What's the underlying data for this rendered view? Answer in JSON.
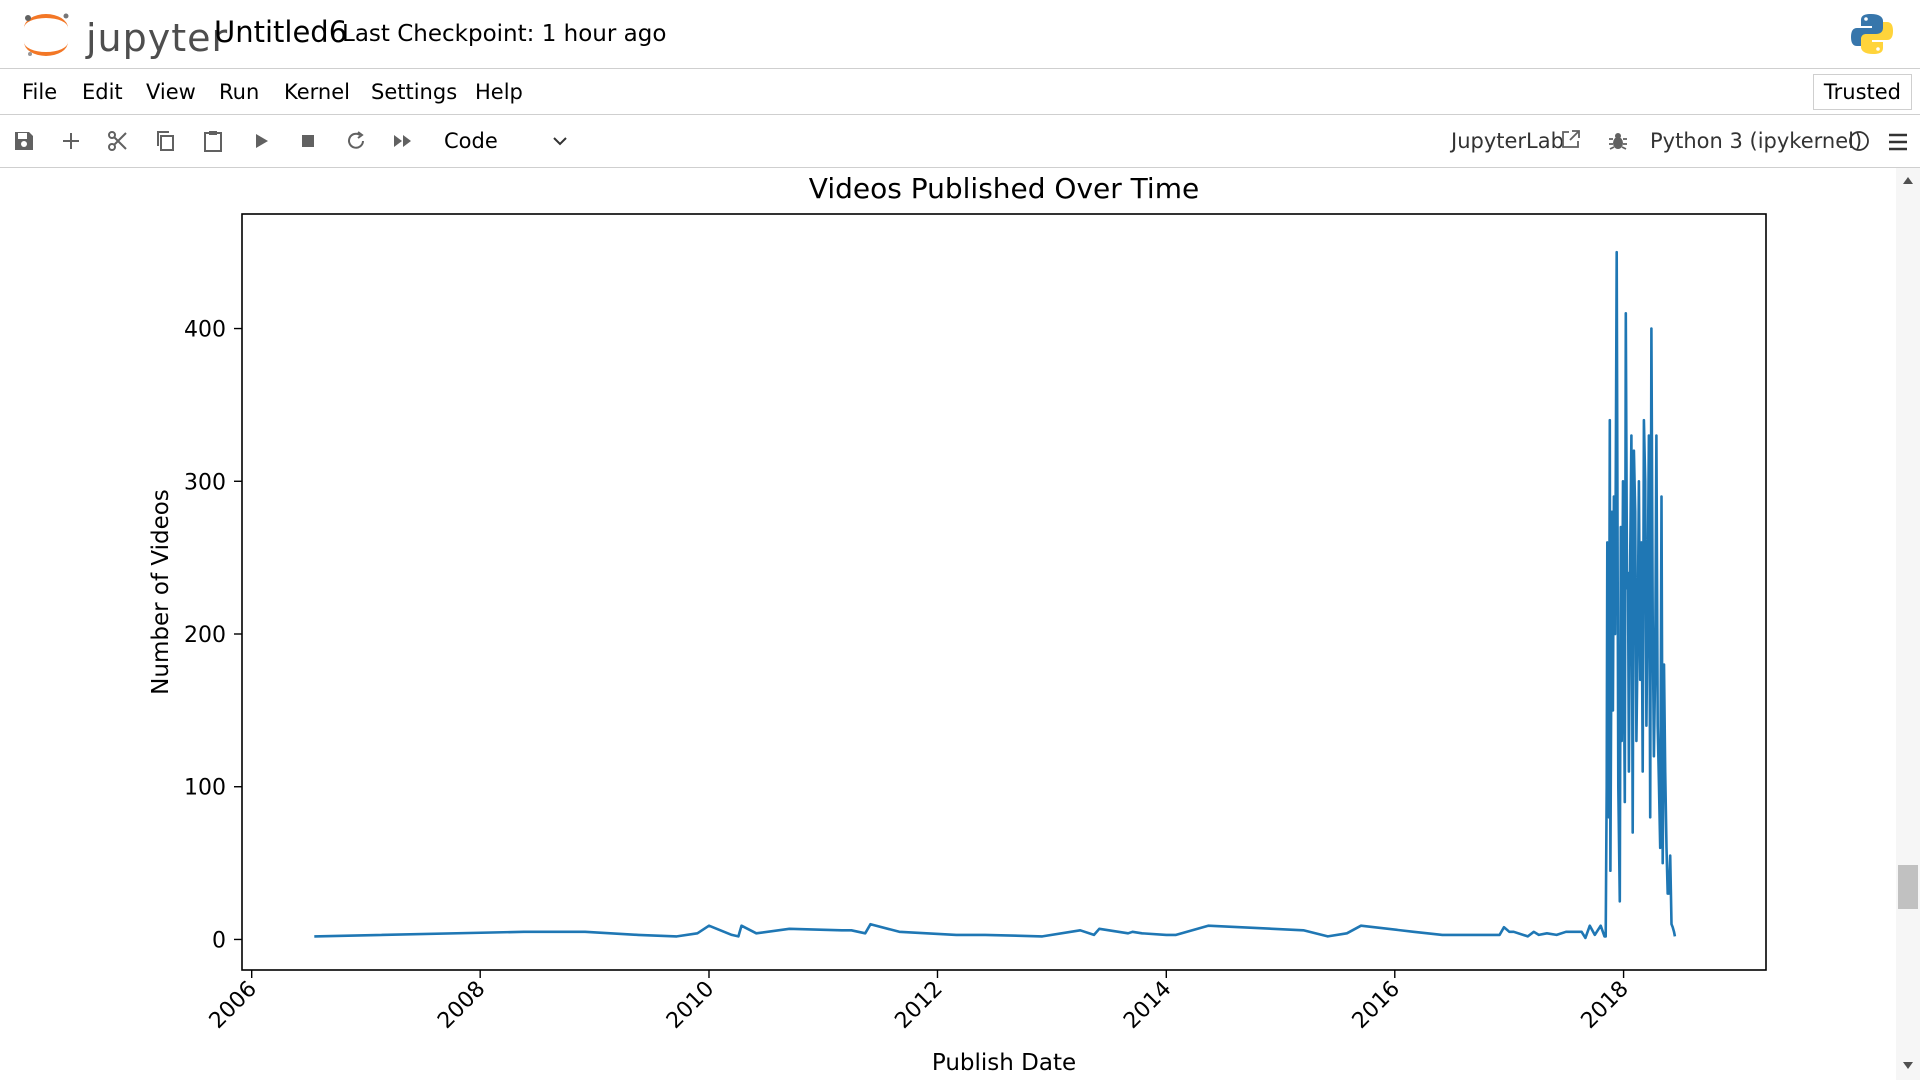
{
  "header": {
    "logo_text": "jupyter",
    "notebook_title": "Untitled6",
    "checkpoint": "Last Checkpoint: 1 hour ago"
  },
  "menu": {
    "items": [
      "File",
      "Edit",
      "View",
      "Run",
      "Kernel",
      "Settings",
      "Help"
    ],
    "trusted": "Trusted"
  },
  "toolbar": {
    "cell_type": "Code",
    "jupyterlab_label": "JupyterLab",
    "kernel_name": "Python 3 (ipykernel)"
  },
  "colors": {
    "line": "#1f77b4",
    "logo_orange": "#f37726",
    "python_blue": "#3776ab",
    "python_yellow": "#ffd43b"
  },
  "chart_data": {
    "type": "line",
    "title": "Videos Published Over Time",
    "xlabel": "Publish Date",
    "ylabel": "Number of Videos",
    "xlim": [
      "2005-12-01",
      "2019-04-01"
    ],
    "ylim": [
      -20,
      475
    ],
    "x_ticks": [
      "2006",
      "2008",
      "2010",
      "2012",
      "2014",
      "2016",
      "2018"
    ],
    "y_ticks": [
      0,
      100,
      200,
      300,
      400
    ],
    "grid": false,
    "series": [
      {
        "x": [
          "2006-07-20",
          "2008-05-20",
          "2008-12-01",
          "2009-05-20",
          "2009-09-20",
          "2009-11-25",
          "2010-01-01",
          "2010-03-15",
          "2010-04-05",
          "2010-04-15",
          "2010-06-01",
          "2010-09-15",
          "2011-03-01",
          "2011-04-01",
          "2011-05-15",
          "2011-06-01",
          "2011-09-01",
          "2012-03-01",
          "2012-06-01",
          "2012-12-01",
          "2013-04-01",
          "2013-05-15",
          "2013-06-01",
          "2013-09-01",
          "2013-09-15",
          "2013-10-15",
          "2014-01-01",
          "2014-02-01",
          "2014-05-15",
          "2015-03-15",
          "2015-06-01",
          "2015-08-01",
          "2015-09-15",
          "2016-03-01",
          "2016-06-01",
          "2016-07-15",
          "2016-10-01",
          "2016-10-15",
          "2016-12-01",
          "2016-12-15",
          "2017-01-01",
          "2017-01-15",
          "2017-03-01",
          "2017-03-20",
          "2017-04-05",
          "2017-05-01",
          "2017-06-01",
          "2017-07-01",
          "2017-08-20",
          "2017-09-01",
          "2017-09-15",
          "2017-10-01",
          "2017-10-20",
          "2017-11-01",
          "2017-11-05",
          "2017-11-08",
          "2017-11-10",
          "2017-11-15",
          "2017-11-18",
          "2017-11-20",
          "2017-11-25",
          "2017-11-28",
          "2017-12-01",
          "2017-12-05",
          "2017-12-10",
          "2017-12-15",
          "2017-12-20",
          "2017-12-23",
          "2017-12-26",
          "2017-12-30",
          "2018-01-02",
          "2018-01-05",
          "2018-01-08",
          "2018-01-12",
          "2018-01-15",
          "2018-01-18",
          "2018-01-22",
          "2018-01-26",
          "2018-01-30",
          "2018-02-03",
          "2018-02-07",
          "2018-02-11",
          "2018-02-15",
          "2018-02-19",
          "2018-02-23",
          "2018-02-27",
          "2018-03-03",
          "2018-03-07",
          "2018-03-11",
          "2018-03-15",
          "2018-03-19",
          "2018-03-23",
          "2018-03-27",
          "2018-03-31",
          "2018-04-04",
          "2018-04-08",
          "2018-04-12",
          "2018-04-16",
          "2018-04-20",
          "2018-04-24",
          "2018-04-28",
          "2018-05-02",
          "2018-05-06",
          "2018-05-10",
          "2018-05-14",
          "2018-05-18",
          "2018-05-22",
          "2018-05-26",
          "2018-05-30",
          "2018-06-03",
          "2018-06-07",
          "2018-06-11",
          "2018-06-14"
        ],
        "values": [
          2,
          5,
          5,
          3,
          2,
          4,
          9,
          3,
          2,
          9,
          4,
          7,
          6,
          6,
          4,
          10,
          5,
          3,
          3,
          2,
          6,
          3,
          7,
          4,
          5,
          4,
          3,
          3,
          9,
          6,
          2,
          4,
          9,
          5,
          3,
          3,
          3,
          3,
          3,
          8,
          5,
          5,
          2,
          5,
          3,
          4,
          3,
          5,
          5,
          1,
          9,
          3,
          9,
          2,
          2,
          100,
          260,
          80,
          340,
          45,
          280,
          150,
          290,
          200,
          450,
          100,
          25,
          270,
          130,
          300,
          180,
          90,
          410,
          230,
          240,
          110,
          250,
          330,
          70,
          320,
          280,
          130,
          200,
          300,
          170,
          260,
          110,
          340,
          300,
          140,
          230,
          330,
          80,
          400,
          210,
          120,
          180,
          330,
          140,
          100,
          60,
          290,
          50,
          180,
          110,
          60,
          30,
          30,
          55,
          10,
          8,
          5,
          2
        ],
        "note_x_hidden": ""
      }
    ]
  }
}
